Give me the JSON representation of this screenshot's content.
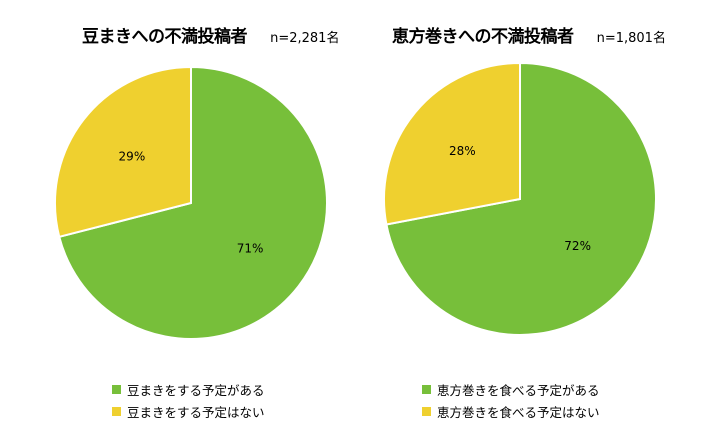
{
  "colors": {
    "green": "#77bf3a",
    "yellow": "#efd02f"
  },
  "chart_data": [
    {
      "type": "pie",
      "title": "豆まきへの不満投稿者",
      "sample": "n=2,281名",
      "legend_position": "bottom",
      "slices": [
        {
          "name": "豆まきをする予定がある",
          "value": 71,
          "label": "71%",
          "color": "#77bf3a"
        },
        {
          "name": "豆まきをする予定はない",
          "value": 29,
          "label": "29%",
          "color": "#efd02f"
        }
      ]
    },
    {
      "type": "pie",
      "title": "恵方巻きへの不満投稿者",
      "sample": "n=1,801名",
      "legend_position": "bottom",
      "slices": [
        {
          "name": "恵方巻きを食べる予定がある",
          "value": 72,
          "label": "72%",
          "color": "#77bf3a"
        },
        {
          "name": "恵方巻きを食べる予定はない",
          "value": 28,
          "label": "28%",
          "color": "#efd02f"
        }
      ]
    }
  ]
}
